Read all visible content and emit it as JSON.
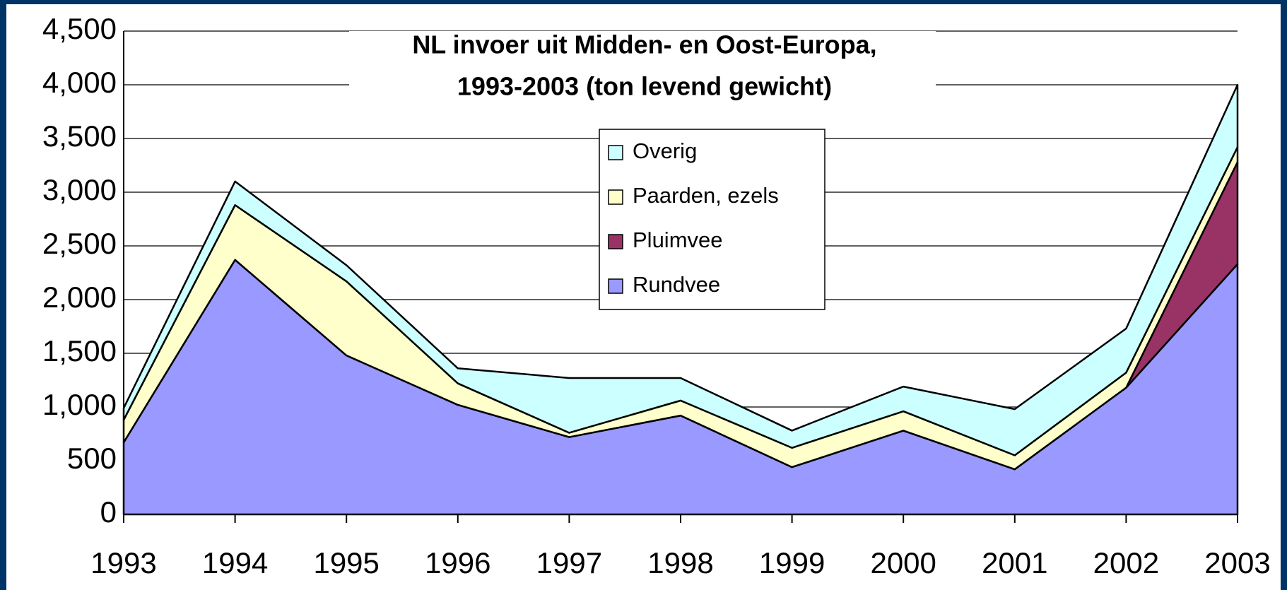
{
  "chart_data": {
    "type": "stacked_area",
    "title": [
      "NL invoer uit Midden- en Oost-Europa,",
      "1993-2003 (ton levend gewicht)"
    ],
    "categories": [
      "1993",
      "1994",
      "1995",
      "1996",
      "1997",
      "1998",
      "1999",
      "2000",
      "2001",
      "2002",
      "2003"
    ],
    "series": [
      {
        "name": "Rundvee",
        "color": "#9999ff",
        "values": [
          670,
          2370,
          1480,
          1020,
          720,
          920,
          440,
          780,
          420,
          1180,
          2330
        ]
      },
      {
        "name": "Pluimvee",
        "color": "#993366",
        "values": [
          0,
          0,
          0,
          0,
          0,
          0,
          0,
          0,
          0,
          0,
          950
        ]
      },
      {
        "name": "Paarden, ezels",
        "color": "#ffffcc",
        "values": [
          210,
          510,
          690,
          200,
          40,
          140,
          180,
          180,
          130,
          140,
          140
        ]
      },
      {
        "name": "Overig",
        "color": "#ccffff",
        "values": [
          110,
          220,
          150,
          140,
          510,
          210,
          160,
          230,
          430,
          410,
          580
        ]
      }
    ],
    "ylim": [
      0,
      4500
    ],
    "yticks": [
      0,
      500,
      {
        "value": 1000,
        "label": "1,000"
      },
      {
        "value": 1500,
        "label": "1,500"
      },
      {
        "value": 2000,
        "label": "2,000"
      },
      {
        "value": 2500,
        "label": "2,500"
      },
      {
        "value": 3000,
        "label": "3,000"
      },
      {
        "value": 3500,
        "label": "3,500"
      },
      {
        "value": 4000,
        "label": "4,000"
      },
      {
        "value": 4500,
        "label": "4,500"
      }
    ],
    "grid": true,
    "legend": "top-center"
  }
}
